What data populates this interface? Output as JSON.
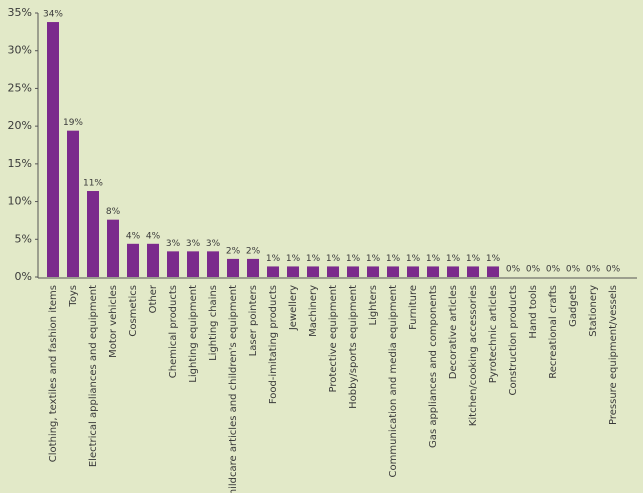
{
  "chart_data": {
    "type": "bar",
    "categories": [
      "Clothing, textiles and fashion items",
      "Toys",
      "Electrical appliances and equipment",
      "Motor vehicles",
      "Cosmetics",
      "Other",
      "Chemical products",
      "Lighting equipment",
      "Lighting chains",
      "Childcare articles and children's equipment",
      "Laser pointers",
      "Food-imitating products",
      "Jewellery",
      "Machinery",
      "Protective equipment",
      "Hobby/sports equipment",
      "Lighters",
      "Communication and media equipment",
      "Furniture",
      "Gas appliances and components",
      "Decorative articles",
      "Kitchen/cooking accessories",
      "Pyrotechnic articles",
      "Construction products",
      "Hand tools",
      "Recreational crafts",
      "Gadgets",
      "Stationery",
      "Pressure equipment/vessels"
    ],
    "values": [
      33.8,
      19.4,
      11.4,
      7.6,
      4.4,
      4.4,
      3.4,
      3.4,
      3.4,
      2.4,
      2.4,
      1.4,
      1.4,
      1.4,
      1.4,
      1.4,
      1.4,
      1.4,
      1.4,
      1.4,
      1.4,
      1.4,
      1.4,
      0,
      0,
      0,
      0,
      0,
      0
    ],
    "value_labels": [
      "34%",
      "19%",
      "11%",
      "8%",
      "4%",
      "4%",
      "3%",
      "3%",
      "3%",
      "2%",
      "2%",
      "1%",
      "1%",
      "1%",
      "1%",
      "1%",
      "1%",
      "1%",
      "1%",
      "1%",
      "1%",
      "1%",
      "1%",
      "0%",
      "0%",
      "0%",
      "0%",
      "0%",
      "0%"
    ],
    "color": "#7b2a8c",
    "ylim": [
      0,
      35
    ],
    "yticks": [
      {
        "value": 0,
        "label": "0%"
      },
      {
        "value": 5,
        "label": "5%"
      },
      {
        "value": 10,
        "label": "10%"
      },
      {
        "value": 15,
        "label": "15%"
      },
      {
        "value": 20,
        "label": "20%"
      },
      {
        "value": 25,
        "label": "25%"
      },
      {
        "value": 30,
        "label": "30%"
      },
      {
        "value": 35,
        "label": "35%"
      }
    ],
    "grid": false
  }
}
